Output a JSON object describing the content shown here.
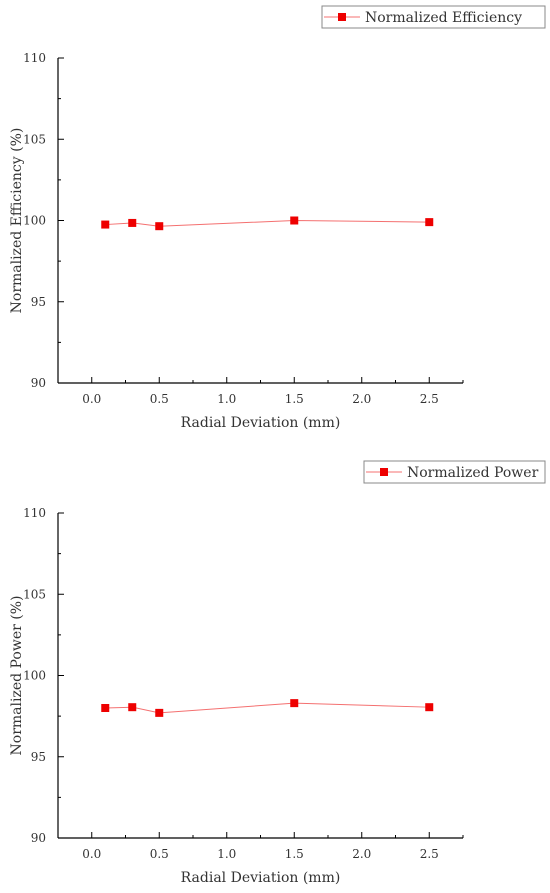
{
  "colors": {
    "series": "#ee0000",
    "series_line": "#f47070",
    "axis": "#000000",
    "text": "#333333"
  },
  "chart_data": [
    {
      "type": "line",
      "xlabel": "Radial Deviation (mm)",
      "ylabel": "Normalized Efficiency (%)",
      "xlim": [
        -0.25,
        2.75
      ],
      "ylim": [
        90,
        110
      ],
      "xticks": [
        "0.0",
        "0.5",
        "1.0",
        "1.5",
        "2.0",
        "2.5"
      ],
      "yticks": [
        "90",
        "95",
        "100",
        "105",
        "110"
      ],
      "legend": "top-right, outside the plot area",
      "grid": false,
      "series": [
        {
          "name": "Normalized Efficiency",
          "marker": "square",
          "x": [
            0.1,
            0.3,
            0.5,
            1.5,
            2.5
          ],
          "y": [
            99.75,
            99.85,
            99.65,
            100.0,
            99.9
          ]
        }
      ]
    },
    {
      "type": "line",
      "xlabel": "Radial Deviation (mm)",
      "ylabel": "Normalized Power (%)",
      "xlim": [
        -0.25,
        2.75
      ],
      "ylim": [
        90,
        110
      ],
      "xticks": [
        "0.0",
        "0.5",
        "1.0",
        "1.5",
        "2.0",
        "2.5"
      ],
      "yticks": [
        "90",
        "95",
        "100",
        "105",
        "110"
      ],
      "legend": "top-right, outside the plot area",
      "grid": false,
      "series": [
        {
          "name": "Normalized Power",
          "marker": "square",
          "x": [
            0.1,
            0.3,
            0.5,
            1.5,
            2.5
          ],
          "y": [
            98.0,
            98.05,
            97.7,
            98.3,
            98.05
          ]
        }
      ]
    }
  ]
}
